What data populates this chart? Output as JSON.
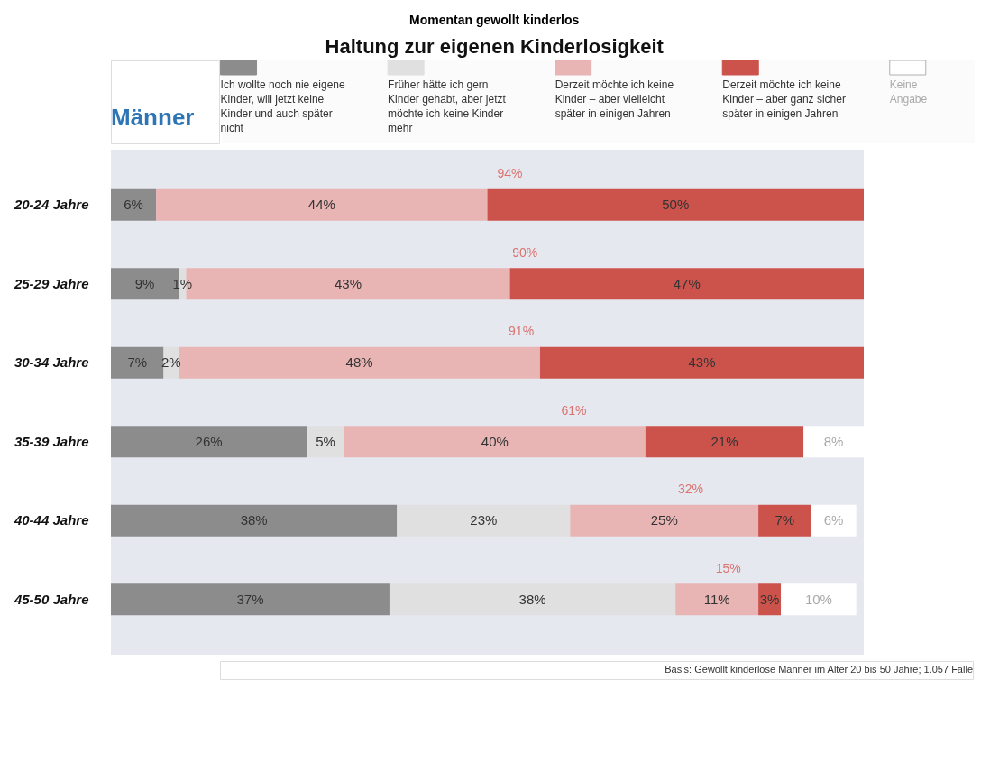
{
  "chart_data": {
    "type": "bar",
    "orientation": "horizontal",
    "stacked": true,
    "title": "Momentan gewollt kinderlos",
    "subtitle": "Haltung zur eigenen Kinderlosigkeit",
    "legend_title": "Männer",
    "legend": "top",
    "categories": [
      "20-24 Jahre",
      "25-29 Jahre",
      "30-34 Jahre",
      "35-39 Jahre",
      "40-44 Jahre",
      "45-50 Jahre"
    ],
    "series": [
      {
        "name": "Ich wollte noch nie eigene Kinder, will jetzt keine Kinder und auch später nicht",
        "color": "#8c8c8c",
        "values": [
          6,
          9,
          7,
          26,
          38,
          37
        ],
        "value_labels": [
          "6%",
          "9%",
          "7%",
          "26%",
          "38%",
          "37%"
        ]
      },
      {
        "name": "Früher hätte ich gern Kinder gehabt, aber jetzt möchte ich keine Kinder mehr",
        "color": "#e0e0e0",
        "values": [
          null,
          1,
          2,
          5,
          23,
          38
        ],
        "value_labels": [
          null,
          "1%",
          "2%",
          "5%",
          "23%",
          "38%"
        ]
      },
      {
        "name": "Derzeit möchte ich keine Kinder – aber vielleicht später in einigen Jahren",
        "color": "#e8b4b4",
        "values": [
          44,
          43,
          48,
          40,
          25,
          11
        ],
        "value_labels": [
          "44%",
          "43%",
          "48%",
          "40%",
          "25%",
          "11%"
        ]
      },
      {
        "name": "Derzeit möchte ich keine Kinder – aber ganz sicher später in einigen Jahren",
        "color": "#cc534c",
        "values": [
          50,
          47,
          43,
          21,
          7,
          3
        ],
        "value_labels": [
          "50%",
          "47%",
          "43%",
          "21%",
          "7%",
          "3%"
        ]
      },
      {
        "name": "Keine Angabe",
        "color": "#ffffff",
        "values": [
          null,
          null,
          null,
          8,
          6,
          10
        ],
        "value_labels": [
          null,
          null,
          null,
          "8%",
          "6%",
          "10%"
        ]
      }
    ],
    "annotations": [
      "94%",
      "90%",
      "91%",
      "61%",
      "32%",
      "15%",
      "Basis: Gewollt kinderlose Männer im Alter 20 bis 50 Jahre; 1.057 Fälle"
    ]
  }
}
